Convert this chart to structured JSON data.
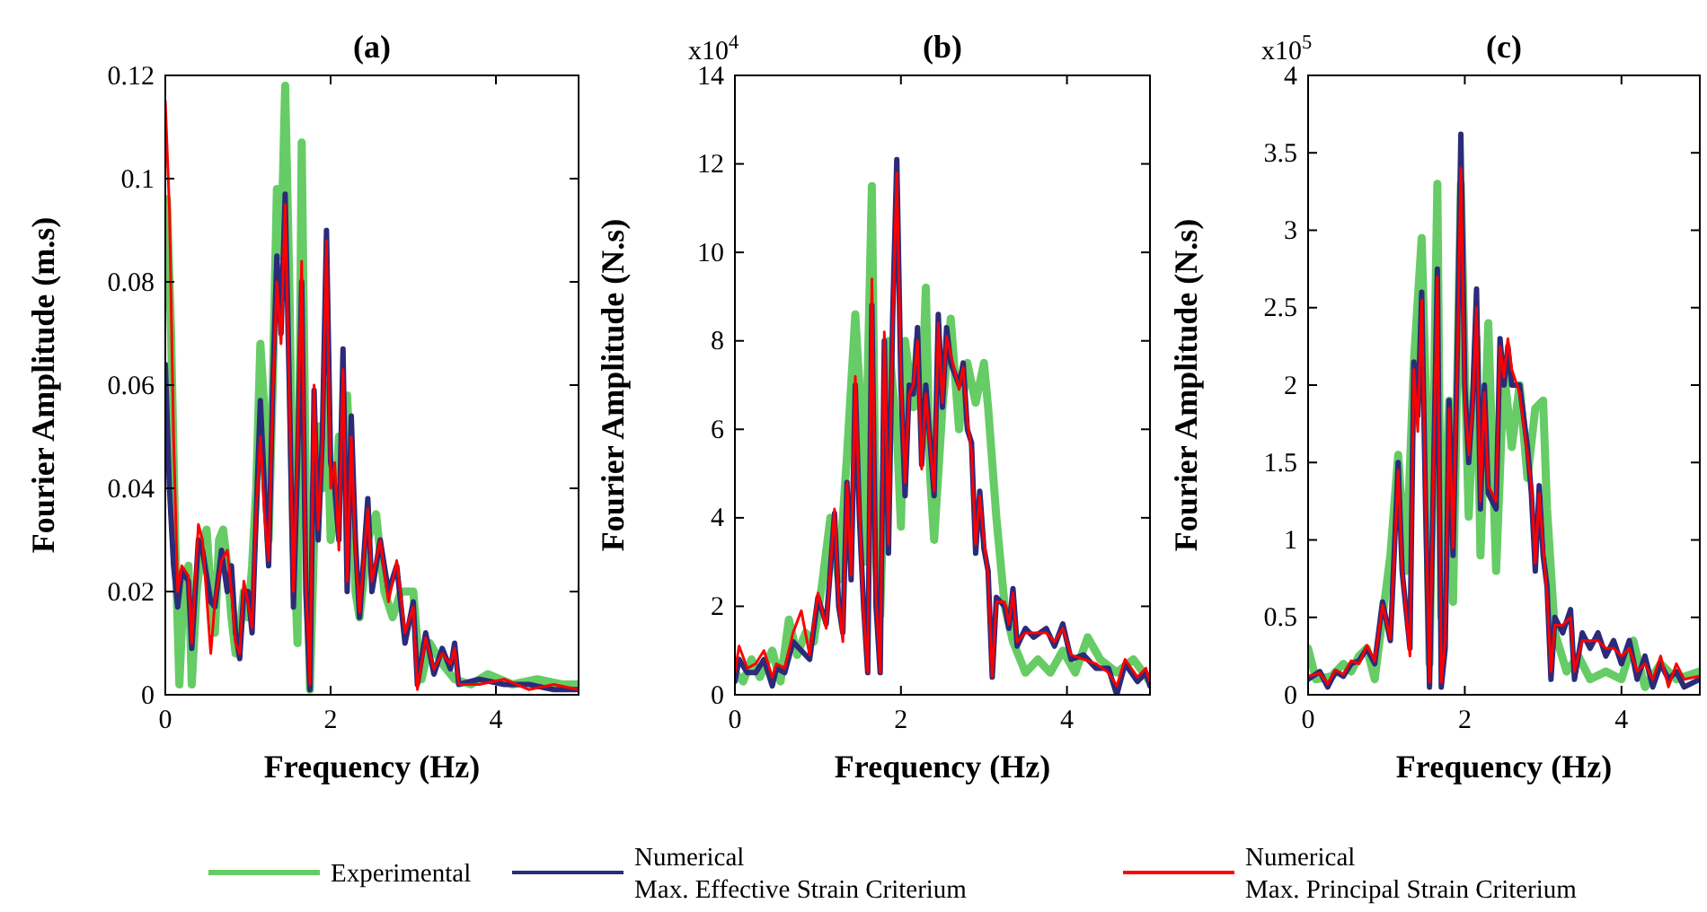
{
  "chart_data": [
    {
      "type": "line",
      "title": "(a)",
      "xlabel": "Frequency (Hz)",
      "ylabel": "Fourier Amplitude (m.s)",
      "xlim": [
        0,
        5
      ],
      "xticks": [
        0,
        2,
        4
      ],
      "ylim": [
        0,
        0.12
      ],
      "yticks": [
        0,
        0.02,
        0.04,
        0.06,
        0.08,
        0.1,
        0.12
      ],
      "grid": false,
      "legend": "bottom",
      "line_style": "solid",
      "marker": "none",
      "series": [
        {
          "name": "Experimental",
          "color": "#66cc66",
          "x": [
            0,
            0.02,
            0.07,
            0.12,
            0.17,
            0.22,
            0.28,
            0.32,
            0.38,
            0.45,
            0.5,
            0.55,
            0.6,
            0.65,
            0.7,
            0.75,
            0.8,
            0.85,
            0.9,
            0.95,
            1.0,
            1.05,
            1.1,
            1.15,
            1.2,
            1.25,
            1.3,
            1.35,
            1.4,
            1.45,
            1.5,
            1.55,
            1.6,
            1.65,
            1.7,
            1.75,
            1.8,
            1.85,
            1.9,
            1.95,
            2.0,
            2.05,
            2.1,
            2.15,
            2.2,
            2.3,
            2.35,
            2.45,
            2.55,
            2.65,
            2.75,
            2.85,
            3.0,
            3.05,
            3.1,
            3.2,
            3.35,
            3.5,
            3.7,
            3.9,
            4.2,
            4.5,
            4.8,
            5.0
          ],
          "values": [
            0.09,
            0.096,
            0.07,
            0.03,
            0.002,
            0.02,
            0.025,
            0.002,
            0.02,
            0.03,
            0.032,
            0.02,
            0.012,
            0.03,
            0.032,
            0.025,
            0.015,
            0.008,
            0.012,
            0.02,
            0.015,
            0.025,
            0.04,
            0.068,
            0.055,
            0.03,
            0.06,
            0.098,
            0.085,
            0.118,
            0.08,
            0.03,
            0.01,
            0.107,
            0.04,
            0.001,
            0.03,
            0.052,
            0.04,
            0.06,
            0.03,
            0.035,
            0.05,
            0.05,
            0.058,
            0.02,
            0.015,
            0.03,
            0.035,
            0.02,
            0.015,
            0.02,
            0.02,
            0.01,
            0.003,
            0.01,
            0.006,
            0.003,
            0.002,
            0.004,
            0.002,
            0.003,
            0.002,
            0.002
          ]
        },
        {
          "name": "Numerical\nMax. Effective Strain Criterium",
          "color": "#2b2b7a",
          "x": [
            0,
            0.05,
            0.1,
            0.15,
            0.2,
            0.28,
            0.32,
            0.4,
            0.45,
            0.55,
            0.6,
            0.68,
            0.75,
            0.8,
            0.85,
            0.9,
            0.95,
            1.0,
            1.05,
            1.1,
            1.15,
            1.2,
            1.25,
            1.3,
            1.35,
            1.4,
            1.45,
            1.5,
            1.55,
            1.6,
            1.65,
            1.7,
            1.75,
            1.8,
            1.85,
            1.9,
            1.95,
            2.0,
            2.05,
            2.1,
            2.15,
            2.2,
            2.25,
            2.3,
            2.35,
            2.45,
            2.5,
            2.6,
            2.7,
            2.8,
            2.9,
            3.0,
            3.05,
            3.15,
            3.25,
            3.35,
            3.45,
            3.5,
            3.55,
            3.8,
            4.1,
            4.4,
            4.7,
            5.0
          ],
          "values": [
            0.064,
            0.04,
            0.025,
            0.017,
            0.024,
            0.022,
            0.009,
            0.03,
            0.028,
            0.018,
            0.017,
            0.028,
            0.02,
            0.025,
            0.012,
            0.007,
            0.02,
            0.02,
            0.012,
            0.035,
            0.057,
            0.04,
            0.025,
            0.06,
            0.085,
            0.07,
            0.097,
            0.06,
            0.017,
            0.045,
            0.08,
            0.02,
            0.001,
            0.059,
            0.03,
            0.05,
            0.09,
            0.045,
            0.04,
            0.03,
            0.067,
            0.02,
            0.054,
            0.03,
            0.015,
            0.038,
            0.02,
            0.03,
            0.02,
            0.025,
            0.01,
            0.018,
            0.002,
            0.012,
            0.004,
            0.009,
            0.005,
            0.01,
            0.002,
            0.003,
            0.002,
            0.002,
            0.001,
            0.001
          ]
        },
        {
          "name": "Numerical\nMax. Principal Strain Criterium",
          "color": "#ff0000",
          "x": [
            0,
            0.05,
            0.1,
            0.15,
            0.2,
            0.28,
            0.32,
            0.4,
            0.45,
            0.55,
            0.6,
            0.68,
            0.75,
            0.8,
            0.85,
            0.9,
            0.95,
            1.0,
            1.05,
            1.1,
            1.15,
            1.2,
            1.25,
            1.3,
            1.35,
            1.4,
            1.45,
            1.5,
            1.55,
            1.6,
            1.65,
            1.7,
            1.75,
            1.8,
            1.85,
            1.9,
            1.95,
            2.0,
            2.05,
            2.1,
            2.15,
            2.2,
            2.25,
            2.3,
            2.35,
            2.45,
            2.5,
            2.6,
            2.7,
            2.8,
            2.9,
            3.0,
            3.05,
            3.15,
            3.25,
            3.35,
            3.45,
            3.5,
            3.55,
            3.8,
            4.1,
            4.4,
            4.7,
            5.0
          ],
          "values": [
            0.115,
            0.094,
            0.05,
            0.02,
            0.025,
            0.023,
            0.01,
            0.033,
            0.03,
            0.008,
            0.018,
            0.026,
            0.028,
            0.02,
            0.01,
            0.008,
            0.022,
            0.018,
            0.013,
            0.036,
            0.05,
            0.035,
            0.026,
            0.058,
            0.08,
            0.068,
            0.095,
            0.058,
            0.02,
            0.048,
            0.084,
            0.022,
            0.002,
            0.06,
            0.032,
            0.048,
            0.088,
            0.04,
            0.045,
            0.028,
            0.063,
            0.022,
            0.05,
            0.028,
            0.016,
            0.036,
            0.022,
            0.03,
            0.018,
            0.026,
            0.012,
            0.017,
            0.001,
            0.011,
            0.005,
            0.008,
            0.006,
            0.009,
            0.002,
            0.002,
            0.003,
            0.001,
            0.002,
            0.001
          ]
        }
      ]
    },
    {
      "type": "line",
      "title": "(b)",
      "xlabel": "Frequency (Hz)",
      "ylabel": "Fourier Amplitude (N.s)",
      "annotations": [
        "x10$^{4}$"
      ],
      "xlim": [
        0,
        5
      ],
      "xticks": [
        0,
        2,
        4
      ],
      "ylim": [
        0,
        14
      ],
      "yticks": [
        0,
        2,
        4,
        6,
        8,
        10,
        12,
        14
      ],
      "grid": false,
      "legend": false,
      "line_style": "solid",
      "marker": "none",
      "series": [
        {
          "color": "#66cc66",
          "x": [
            0,
            0.1,
            0.2,
            0.3,
            0.45,
            0.55,
            0.65,
            0.75,
            0.85,
            0.95,
            1.05,
            1.15,
            1.25,
            1.35,
            1.45,
            1.5,
            1.55,
            1.65,
            1.7,
            1.75,
            1.85,
            1.95,
            2.0,
            2.05,
            2.15,
            2.2,
            2.25,
            2.3,
            2.35,
            2.4,
            2.5,
            2.6,
            2.7,
            2.8,
            2.9,
            3.0,
            3.05,
            3.15,
            3.25,
            3.35,
            3.5,
            3.65,
            3.8,
            3.95,
            4.1,
            4.25,
            4.4,
            4.6,
            4.8,
            5.0
          ],
          "values": [
            0.5,
            0.3,
            0.8,
            0.4,
            1.0,
            0.3,
            1.7,
            0.9,
            1.4,
            1.2,
            2.5,
            4.0,
            2.6,
            5.4,
            8.6,
            7.0,
            3.0,
            11.5,
            3.0,
            1.8,
            8.0,
            6.0,
            3.8,
            8.0,
            6.5,
            8.0,
            6.5,
            9.2,
            5.0,
            3.5,
            6.5,
            8.5,
            6.0,
            7.5,
            6.6,
            7.5,
            6.5,
            4.0,
            2.0,
            1.2,
            0.5,
            0.8,
            0.5,
            1.0,
            0.5,
            1.3,
            0.8,
            0.5,
            0.8,
            0.3
          ]
        },
        {
          "color": "#2b2b7a",
          "x": [
            0,
            0.05,
            0.15,
            0.25,
            0.35,
            0.45,
            0.5,
            0.6,
            0.7,
            0.8,
            0.9,
            1.0,
            1.1,
            1.2,
            1.25,
            1.3,
            1.35,
            1.4,
            1.45,
            1.5,
            1.55,
            1.6,
            1.65,
            1.7,
            1.75,
            1.8,
            1.85,
            1.9,
            1.95,
            2.0,
            2.05,
            2.1,
            2.15,
            2.2,
            2.25,
            2.3,
            2.4,
            2.45,
            2.5,
            2.55,
            2.6,
            2.7,
            2.75,
            2.8,
            2.85,
            2.9,
            2.95,
            3.0,
            3.05,
            3.1,
            3.15,
            3.25,
            3.3,
            3.35,
            3.4,
            3.5,
            3.6,
            3.75,
            3.85,
            3.95,
            4.05,
            4.2,
            4.35,
            4.5,
            4.6,
            4.7,
            4.85,
            4.95,
            5.0
          ],
          "values": [
            0.3,
            0.8,
            0.5,
            0.5,
            0.8,
            0.2,
            0.6,
            0.5,
            1.2,
            1.0,
            0.8,
            2.2,
            1.6,
            4.1,
            2.0,
            1.4,
            4.8,
            2.6,
            7.0,
            4.0,
            2.0,
            0.5,
            8.8,
            2.0,
            0.5,
            8.0,
            3.2,
            8.5,
            12.1,
            7.0,
            4.5,
            7.0,
            6.8,
            8.3,
            5.2,
            7.0,
            4.5,
            8.6,
            6.5,
            8.3,
            7.5,
            7.0,
            7.5,
            6.0,
            5.7,
            3.2,
            4.6,
            3.3,
            2.8,
            0.4,
            2.2,
            2.0,
            1.5,
            2.4,
            1.1,
            1.5,
            1.3,
            1.5,
            1.1,
            1.6,
            0.8,
            0.9,
            0.6,
            0.6,
            0.0,
            0.7,
            0.3,
            0.5,
            0.2
          ]
        },
        {
          "color": "#ff0000",
          "x": [
            0,
            0.05,
            0.15,
            0.25,
            0.35,
            0.45,
            0.5,
            0.6,
            0.7,
            0.8,
            0.9,
            1.0,
            1.1,
            1.2,
            1.25,
            1.3,
            1.35,
            1.4,
            1.45,
            1.5,
            1.55,
            1.6,
            1.65,
            1.7,
            1.75,
            1.8,
            1.85,
            1.9,
            1.95,
            2.0,
            2.05,
            2.1,
            2.15,
            2.2,
            2.25,
            2.3,
            2.4,
            2.45,
            2.5,
            2.55,
            2.6,
            2.7,
            2.75,
            2.8,
            2.85,
            2.9,
            2.95,
            3.0,
            3.05,
            3.1,
            3.15,
            3.25,
            3.3,
            3.35,
            3.4,
            3.5,
            3.6,
            3.75,
            3.85,
            3.95,
            4.05,
            4.2,
            4.35,
            4.5,
            4.6,
            4.7,
            4.85,
            4.95,
            5.0
          ],
          "values": [
            0.5,
            1.1,
            0.6,
            0.7,
            1.0,
            0.4,
            0.7,
            0.6,
            1.4,
            1.9,
            0.9,
            2.3,
            1.5,
            4.2,
            2.1,
            1.2,
            4.8,
            2.7,
            7.2,
            4.2,
            1.8,
            0.5,
            9.4,
            2.2,
            0.5,
            8.2,
            3.4,
            8.3,
            11.8,
            7.1,
            4.8,
            6.8,
            7.0,
            8.0,
            5.1,
            6.8,
            4.6,
            8.4,
            6.6,
            8.1,
            7.7,
            6.9,
            7.4,
            6.2,
            5.5,
            3.4,
            4.5,
            3.5,
            2.7,
            0.4,
            2.1,
            2.1,
            1.6,
            2.3,
            1.2,
            1.4,
            1.4,
            1.4,
            1.2,
            1.5,
            0.9,
            0.8,
            0.7,
            0.5,
            0.2,
            0.8,
            0.4,
            0.6,
            0.3
          ]
        }
      ]
    },
    {
      "type": "line",
      "title": "(c)",
      "xlabel": "Frequency (Hz)",
      "ylabel": "Fourier Amplitude (N.s)",
      "annotations": [
        "x10$^{5}$"
      ],
      "xlim": [
        0,
        5
      ],
      "xticks": [
        0,
        2,
        4
      ],
      "ylim": [
        0,
        4
      ],
      "yticks": [
        0,
        0.5,
        1,
        1.5,
        2,
        2.5,
        3,
        3.5,
        4
      ],
      "grid": false,
      "legend": false,
      "line_style": "solid",
      "marker": "none",
      "series": [
        {
          "color": "#66cc66",
          "x": [
            0,
            0.1,
            0.3,
            0.45,
            0.55,
            0.65,
            0.75,
            0.85,
            0.95,
            1.05,
            1.15,
            1.25,
            1.35,
            1.45,
            1.5,
            1.55,
            1.65,
            1.7,
            1.8,
            1.85,
            1.95,
            2.0,
            2.05,
            2.15,
            2.2,
            2.3,
            2.4,
            2.5,
            2.6,
            2.7,
            2.8,
            2.9,
            3.0,
            3.05,
            3.15,
            3.3,
            3.45,
            3.6,
            3.8,
            4.0,
            4.15,
            4.3,
            4.5,
            4.7,
            5.0
          ],
          "values": [
            0.3,
            0.1,
            0.12,
            0.2,
            0.15,
            0.25,
            0.3,
            0.1,
            0.5,
            0.9,
            1.55,
            0.8,
            2.15,
            2.95,
            2.0,
            0.2,
            3.3,
            0.5,
            1.9,
            0.6,
            3.3,
            2.1,
            1.15,
            2.3,
            0.9,
            2.4,
            0.8,
            2.1,
            1.6,
            2.0,
            1.4,
            1.85,
            1.9,
            1.2,
            0.4,
            0.15,
            0.25,
            0.1,
            0.15,
            0.1,
            0.35,
            0.05,
            0.2,
            0.1,
            0.15
          ]
        },
        {
          "color": "#2b2b7a",
          "x": [
            0,
            0.15,
            0.25,
            0.35,
            0.45,
            0.55,
            0.65,
            0.75,
            0.85,
            0.95,
            1.05,
            1.15,
            1.2,
            1.3,
            1.35,
            1.4,
            1.45,
            1.5,
            1.55,
            1.65,
            1.7,
            1.75,
            1.8,
            1.85,
            1.9,
            1.95,
            2.0,
            2.05,
            2.1,
            2.15,
            2.2,
            2.25,
            2.3,
            2.4,
            2.45,
            2.5,
            2.55,
            2.6,
            2.7,
            2.8,
            2.85,
            2.9,
            2.95,
            3.0,
            3.05,
            3.1,
            3.15,
            3.25,
            3.35,
            3.4,
            3.5,
            3.6,
            3.7,
            3.8,
            3.9,
            4.0,
            4.1,
            4.2,
            4.3,
            4.4,
            4.5,
            4.6,
            4.7,
            4.8,
            5.0
          ],
          "values": [
            0.1,
            0.15,
            0.05,
            0.15,
            0.12,
            0.2,
            0.22,
            0.3,
            0.2,
            0.6,
            0.35,
            1.5,
            0.8,
            0.3,
            2.15,
            1.8,
            2.6,
            1.2,
            0.05,
            2.75,
            0.05,
            0.3,
            1.9,
            0.9,
            2.1,
            3.62,
            2.0,
            1.5,
            1.9,
            2.62,
            1.2,
            2.0,
            1.3,
            1.2,
            2.3,
            2.0,
            2.25,
            2.0,
            2.0,
            1.6,
            1.3,
            0.8,
            1.35,
            0.9,
            0.7,
            0.1,
            0.5,
            0.4,
            0.55,
            0.1,
            0.4,
            0.3,
            0.4,
            0.25,
            0.35,
            0.2,
            0.35,
            0.1,
            0.25,
            0.05,
            0.2,
            0.1,
            0.15,
            0.05,
            0.1
          ]
        },
        {
          "color": "#ff0000",
          "x": [
            0,
            0.15,
            0.25,
            0.35,
            0.45,
            0.55,
            0.65,
            0.75,
            0.85,
            0.95,
            1.05,
            1.15,
            1.2,
            1.3,
            1.35,
            1.4,
            1.45,
            1.5,
            1.55,
            1.65,
            1.7,
            1.75,
            1.8,
            1.85,
            1.9,
            1.95,
            2.0,
            2.05,
            2.1,
            2.15,
            2.2,
            2.25,
            2.3,
            2.4,
            2.45,
            2.5,
            2.55,
            2.6,
            2.7,
            2.8,
            2.85,
            2.9,
            2.95,
            3.0,
            3.05,
            3.1,
            3.15,
            3.25,
            3.35,
            3.4,
            3.5,
            3.6,
            3.7,
            3.8,
            3.9,
            4.0,
            4.1,
            4.2,
            4.3,
            4.4,
            4.5,
            4.6,
            4.7,
            4.8,
            5.0
          ],
          "values": [
            0.12,
            0.14,
            0.07,
            0.16,
            0.13,
            0.22,
            0.2,
            0.32,
            0.22,
            0.58,
            0.36,
            1.45,
            0.82,
            0.25,
            2.1,
            1.7,
            2.55,
            1.25,
            0.08,
            2.7,
            0.08,
            0.35,
            1.85,
            0.95,
            2.05,
            3.4,
            1.9,
            1.55,
            1.85,
            2.5,
            1.25,
            1.95,
            1.35,
            1.25,
            2.25,
            2.05,
            2.3,
            2.1,
            1.95,
            1.55,
            1.35,
            0.85,
            1.3,
            0.95,
            0.65,
            0.15,
            0.45,
            0.45,
            0.5,
            0.15,
            0.35,
            0.35,
            0.35,
            0.3,
            0.3,
            0.25,
            0.3,
            0.15,
            0.2,
            0.1,
            0.25,
            0.05,
            0.2,
            0.1,
            0.12
          ]
        }
      ]
    }
  ]
}
